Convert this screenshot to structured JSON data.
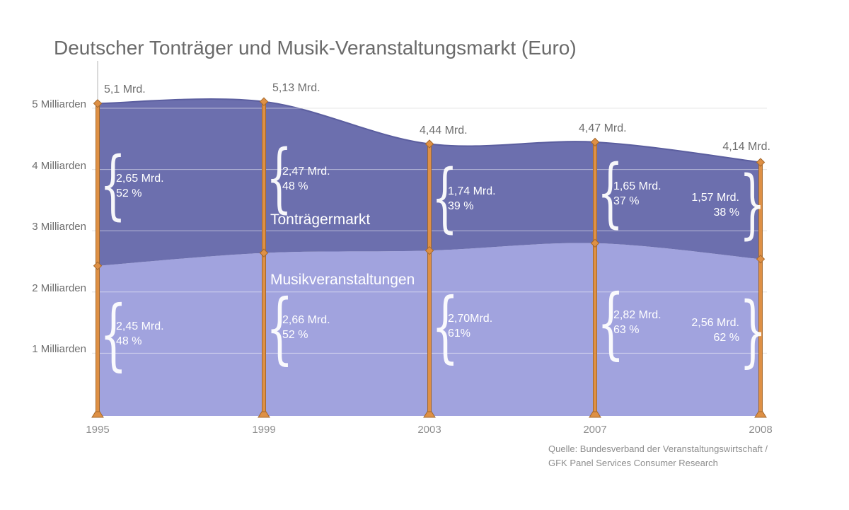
{
  "title": "Deutscher Tonträger und Musik-Veranstaltungsmarkt (Euro)",
  "source_note": {
    "line1": "Quelle: Bundesverband der Veranstaltungswirtschaft /",
    "line2": "GFK Panel Services Consumer Research"
  },
  "colors": {
    "tontraeger_fill": "#6c6fae",
    "tontraeger_edge": "#5b5e9f",
    "musik_fill": "#a1a3de",
    "bar_orange": "#de9045",
    "bar_orange_edge": "#a4682c",
    "grid_gray": "#cfcfcf",
    "grid_white": "rgba(255,255,255,0.5)",
    "title_gray": "#6a6a6a",
    "text_white": "#ffffff",
    "connector_gray": "#b4b4b4"
  },
  "chart_data": {
    "type": "area",
    "stacked": true,
    "title": "Deutscher Tonträger und Musik-Veranstaltungsmarkt (Euro)",
    "x": [
      "1995",
      "1999",
      "2003",
      "2007",
      "2008"
    ],
    "y_axis": {
      "unit": "Mrd. Euro",
      "tick_values": [
        1,
        2,
        3,
        4,
        5
      ],
      "tick_labels": [
        "1 Milliarden",
        "2 Milliarden",
        "3 Milliarden",
        "4 Milliarden",
        "5 Milliarden"
      ],
      "ylim": [
        0,
        5.5
      ],
      "grid": true
    },
    "series": [
      {
        "name": "Musikveranstaltungen",
        "stack_position": "bottom",
        "values": [
          2.45,
          2.66,
          2.7,
          2.82,
          2.56
        ],
        "value_labels": [
          "2,45 Mrd.",
          "2,66 Mrd.",
          "2,70Mrd.",
          "2,82 Mrd.",
          "2,56 Mrd."
        ],
        "pct_labels": [
          "48 %",
          "52 %",
          "61%",
          "63 %",
          "62 %"
        ]
      },
      {
        "name": "Tonträgermarkt",
        "stack_position": "top",
        "values": [
          2.65,
          2.47,
          1.74,
          1.65,
          1.57
        ],
        "value_labels": [
          "2,65 Mrd.",
          "2,47 Mrd.",
          "1,74 Mrd.",
          "1,65 Mrd.",
          "1,57 Mrd."
        ],
        "pct_labels": [
          "52 %",
          "48 %",
          "39 %",
          "37 %",
          "38 %"
        ]
      }
    ],
    "totals": {
      "values": [
        5.1,
        5.13,
        4.44,
        4.47,
        4.14
      ],
      "labels": [
        "5,1 Mrd.",
        "5,13 Mrd.",
        "4,44 Mrd.",
        "4,47 Mrd.",
        "4,14 Mrd."
      ]
    },
    "legend": "inline-area-labels"
  }
}
